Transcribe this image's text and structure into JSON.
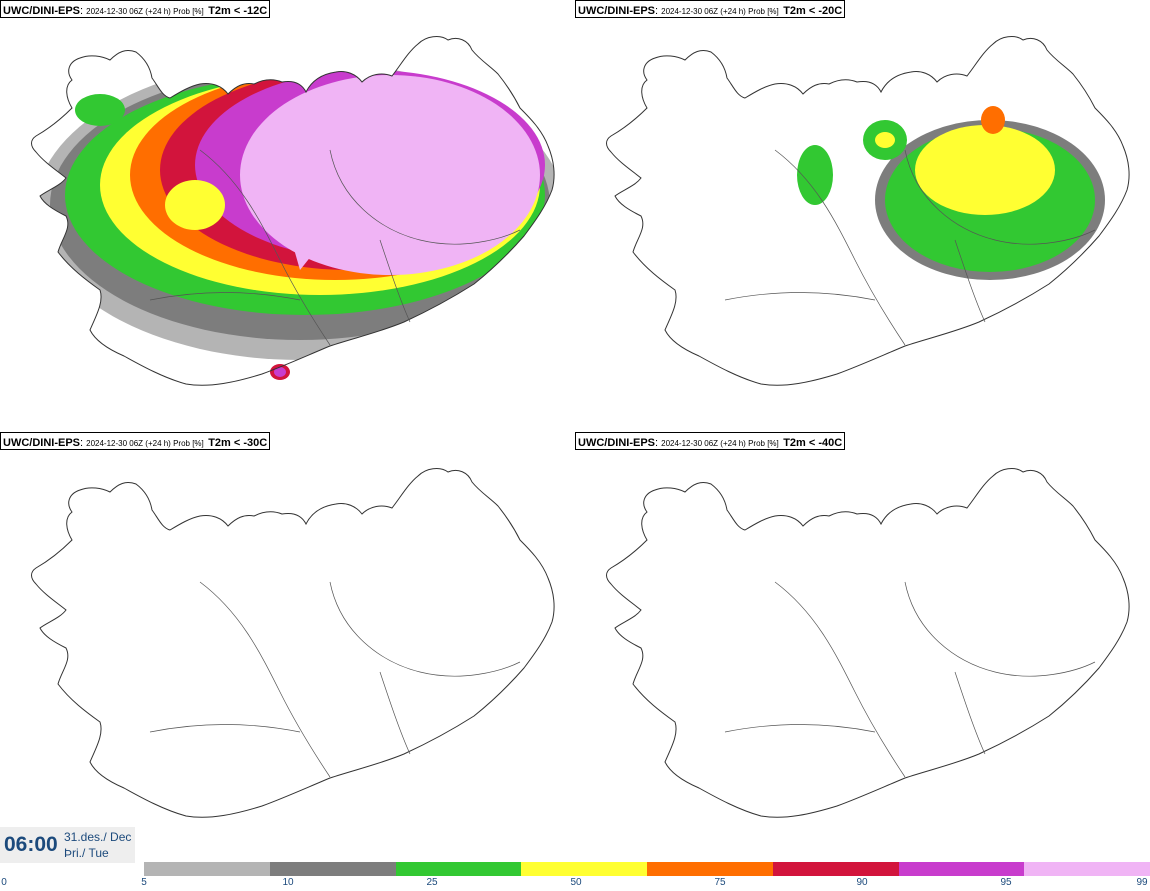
{
  "panels": [
    {
      "model": "UWC/DINI-EPS",
      "meta": "2024-12-30 06Z (+24 h) Prob [%]",
      "param": "T2m < -12C"
    },
    {
      "model": "UWC/DINI-EPS",
      "meta": "2024-12-30 06Z (+24 h) Prob [%]",
      "param": "T2m < -20C"
    },
    {
      "model": "UWC/DINI-EPS",
      "meta": "2024-12-30 06Z (+24 h) Prob [%]",
      "param": "T2m < -30C"
    },
    {
      "model": "UWC/DINI-EPS",
      "meta": "2024-12-30 06Z (+24 h) Prob [%]",
      "param": "T2m < -40C"
    }
  ],
  "time": {
    "clock": "06:00",
    "date": "31.des./ Dec",
    "weekday": "Þri./ Tue"
  },
  "colorbar": {
    "labels": [
      "0",
      "5",
      "10",
      "25",
      "50",
      "75",
      "90",
      "95",
      "99"
    ],
    "colors": [
      "#b4b4b4",
      "#7d7d7d",
      "#32c832",
      "#ffff32",
      "#ff6e00",
      "#d2143c",
      "#c83ccd",
      "#f0b4f5"
    ]
  },
  "map_colors": {
    "grey_light": "#b4b4b4",
    "grey_dark": "#7d7d7d",
    "green": "#32c832",
    "yellow": "#ffff32",
    "orange": "#ff6e00",
    "red": "#d2143c",
    "purple": "#c83ccd",
    "pink": "#f0b4f5"
  }
}
